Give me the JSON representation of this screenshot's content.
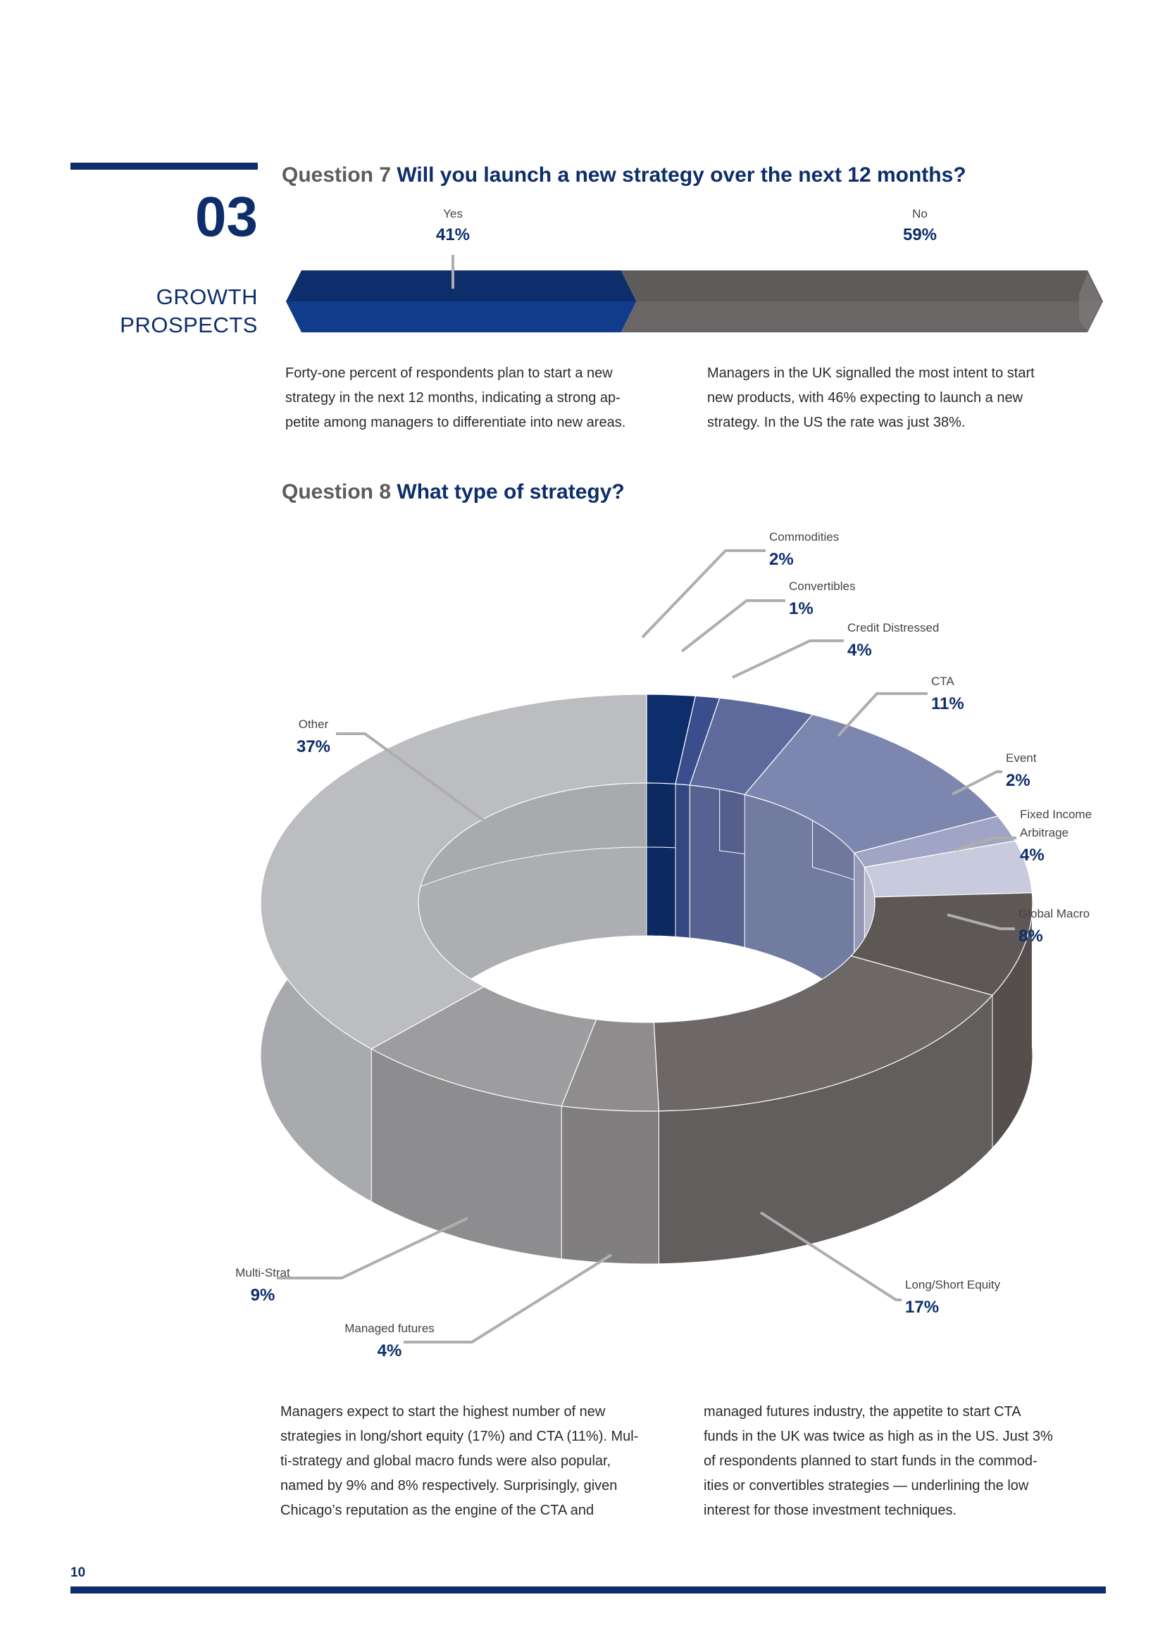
{
  "section": {
    "number": "03",
    "title_line1": "GROWTH",
    "title_line2": "PROSPECTS"
  },
  "q7": {
    "num": "Question 7",
    "text": "Will you launch a new strategy over the next 12 months?",
    "para_left": [
      "Forty-one percent of respondents plan to start a new",
      "strategy in the next 12 months, indicating a strong ap-",
      "petite among managers to differentiate into new areas."
    ],
    "para_right": [
      "Managers in the UK signalled the most intent to start",
      "new products, with 46% expecting to launch a new",
      "strategy. In the US the rate was just 38%."
    ]
  },
  "q8": {
    "num": "Question 8",
    "text": "What type of strategy?",
    "para_left": [
      "Managers expect to start the highest number of new",
      "strategies in long/short equity (17%) and CTA (11%). Mul-",
      "ti-strategy and global macro funds were also popular,",
      "named by 9% and 8% respectively. Surprisingly, given",
      "Chicago’s reputation as the engine of the CTA and"
    ],
    "para_right": [
      "managed futures industry, the appetite to start CTA",
      "funds in the UK was twice as high as in the US. Just 3%",
      "of respondents planned to start funds in the commod-",
      "ities or convertibles strategies — underlining the low",
      "interest for those investment techniques."
    ]
  },
  "chart_data": [
    {
      "type": "bar",
      "categories": [
        "Yes",
        "No"
      ],
      "values": [
        41,
        59
      ],
      "value_labels": [
        "41%",
        "59%"
      ],
      "unit": "%",
      "colors": [
        "#0d2d6b",
        "#5e5b5a"
      ]
    },
    {
      "type": "pie",
      "categories": [
        "Commodities",
        "Convertibles",
        "Credit Distressed",
        "CTA",
        "Event",
        "Fixed Income Arbitrage",
        "Global Macro",
        "Long/Short Equity",
        "Managed futures",
        "Multi-Strat",
        "Other"
      ],
      "label_lines": [
        [
          "Commodities"
        ],
        [
          "Convertibles"
        ],
        [
          "Credit Distressed"
        ],
        [
          "CTA"
        ],
        [
          "Event"
        ],
        [
          "Fixed Income",
          "Arbitrage"
        ],
        [
          "Global Macro"
        ],
        [
          "Long/Short Equity"
        ],
        [
          "Managed futures"
        ],
        [
          "Multi-Strat"
        ],
        [
          "Other"
        ]
      ],
      "values": [
        2,
        1,
        4,
        11,
        2,
        4,
        8,
        17,
        4,
        9,
        37
      ],
      "value_labels": [
        "2%",
        "1%",
        "4%",
        "11%",
        "2%",
        "4%",
        "8%",
        "17%",
        "4%",
        "9%",
        "37%"
      ],
      "unit": "%",
      "style": "3d-donut",
      "colors": [
        "#0d2d6b",
        "#3a4d8c",
        "#5f6a9c",
        "#7c86ae",
        "#a0a5c5",
        "#c8cade",
        "#5d5856",
        "#6d6867",
        "#8e8c8c",
        "#9d9d9f",
        "#bcbdc0"
      ]
    }
  ],
  "page_number": "10"
}
